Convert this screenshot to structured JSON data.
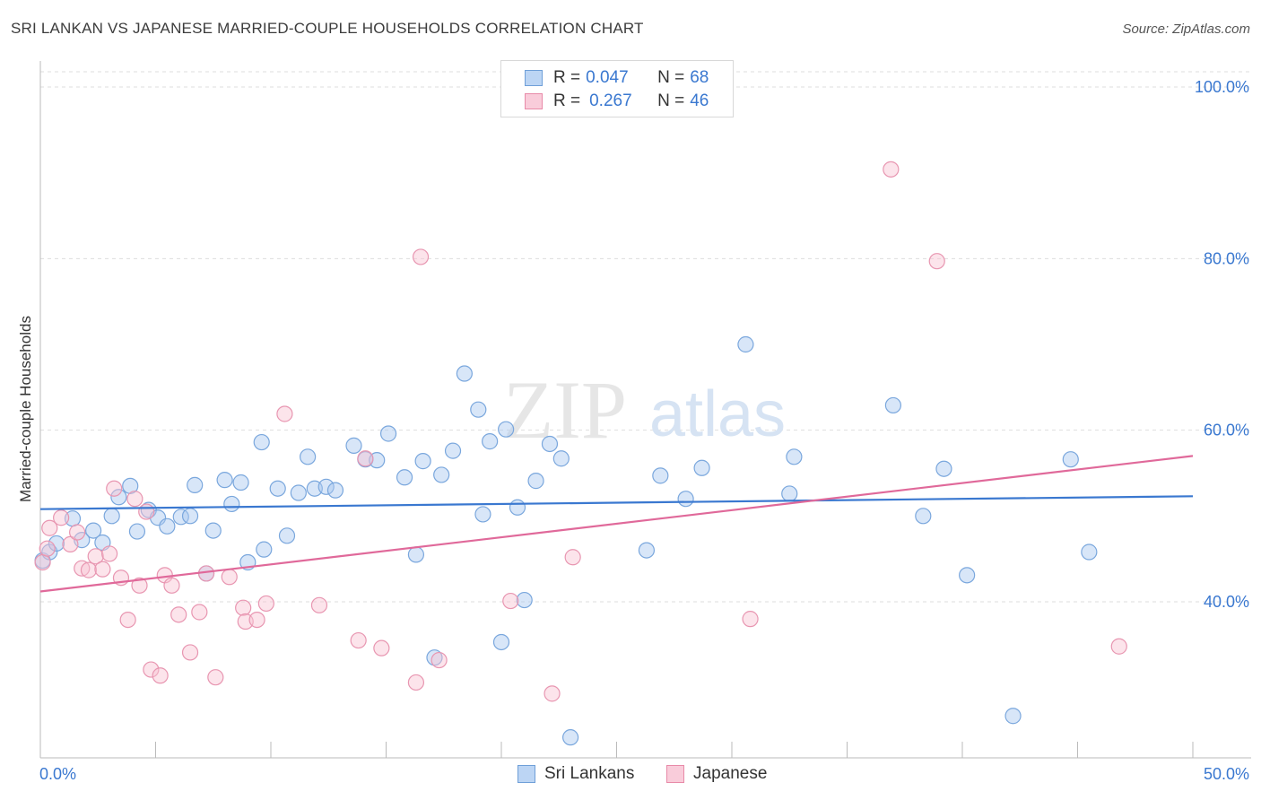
{
  "title": "SRI LANKAN VS JAPANESE MARRIED-COUPLE HOUSEHOLDS CORRELATION CHART",
  "source": "Source: ZipAtlas.com",
  "watermark": {
    "zip": "ZIP",
    "atlas": "atlas"
  },
  "legend": {
    "rows": [
      {
        "r_label": "R =",
        "r_value": "0.047",
        "n_label": "N =",
        "n_value": "68",
        "color": "#a9c8f0",
        "border": "#6f9fd8"
      },
      {
        "r_label": "R =",
        "r_value": "0.267",
        "n_label": "N =",
        "n_value": "46",
        "color": "#f8c3d3",
        "border": "#e88aa8"
      }
    ]
  },
  "bottom_legend": [
    {
      "label": "Sri Lankans",
      "color": "#a9c8f0",
      "border": "#6f9fd8"
    },
    {
      "label": "Japanese",
      "color": "#f8c3d3",
      "border": "#e88aa8"
    }
  ],
  "chart_data": {
    "type": "scatter",
    "title": "SRI LANKAN VS JAPANESE MARRIED-COUPLE HOUSEHOLDS CORRELATION CHART",
    "xlabel": "",
    "ylabel": "Married-couple Households",
    "xlim": [
      0,
      50
    ],
    "ylim": [
      21,
      103
    ],
    "x_tick_labels": [
      "0.0%",
      "50.0%"
    ],
    "y_ticks": [
      40,
      60,
      80,
      100
    ],
    "y_tick_labels": [
      "40.0%",
      "60.0%",
      "80.0%",
      "100.0%"
    ],
    "grid": true,
    "legend_position": "top-center",
    "colors": {
      "sri_lankans": "#3a78d0",
      "japanese": "#e0699a"
    },
    "series": [
      {
        "name": "Sri Lankans",
        "trend": [
          [
            0,
            50.8
          ],
          [
            50,
            52.3
          ]
        ],
        "points": [
          [
            0.1,
            44.8
          ],
          [
            0.4,
            45.8
          ],
          [
            0.7,
            46.8
          ],
          [
            1.4,
            49.7
          ],
          [
            1.8,
            47.2
          ],
          [
            2.3,
            48.3
          ],
          [
            2.7,
            46.9
          ],
          [
            3.1,
            50.0
          ],
          [
            3.4,
            52.2
          ],
          [
            3.9,
            53.5
          ],
          [
            4.2,
            48.2
          ],
          [
            4.7,
            50.7
          ],
          [
            5.1,
            49.8
          ],
          [
            5.5,
            48.8
          ],
          [
            6.1,
            49.9
          ],
          [
            6.5,
            50.0
          ],
          [
            6.7,
            53.6
          ],
          [
            7.2,
            43.3
          ],
          [
            7.5,
            48.3
          ],
          [
            8.0,
            54.2
          ],
          [
            8.3,
            51.4
          ],
          [
            8.7,
            53.9
          ],
          [
            9.0,
            44.6
          ],
          [
            9.6,
            58.6
          ],
          [
            9.7,
            46.1
          ],
          [
            10.3,
            53.2
          ],
          [
            10.7,
            47.7
          ],
          [
            11.2,
            52.7
          ],
          [
            11.6,
            56.9
          ],
          [
            11.9,
            53.2
          ],
          [
            12.4,
            53.4
          ],
          [
            12.8,
            53.0
          ],
          [
            13.6,
            58.2
          ],
          [
            14.1,
            56.6
          ],
          [
            14.6,
            56.5
          ],
          [
            15.1,
            59.6
          ],
          [
            15.8,
            54.5
          ],
          [
            16.3,
            45.5
          ],
          [
            16.6,
            56.4
          ],
          [
            17.1,
            33.5
          ],
          [
            17.4,
            54.8
          ],
          [
            17.9,
            57.6
          ],
          [
            18.4,
            66.6
          ],
          [
            19.0,
            62.4
          ],
          [
            19.2,
            50.2
          ],
          [
            19.5,
            58.7
          ],
          [
            20.0,
            35.3
          ],
          [
            20.2,
            60.1
          ],
          [
            20.7,
            51.0
          ],
          [
            21.0,
            40.2
          ],
          [
            21.5,
            54.1
          ],
          [
            22.1,
            58.4
          ],
          [
            22.6,
            56.7
          ],
          [
            23.0,
            24.2
          ],
          [
            26.3,
            46.0
          ],
          [
            26.9,
            54.7
          ],
          [
            28.0,
            52.0
          ],
          [
            28.7,
            55.6
          ],
          [
            30.6,
            70.0
          ],
          [
            32.5,
            52.6
          ],
          [
            32.7,
            56.9
          ],
          [
            37.0,
            62.9
          ],
          [
            38.3,
            50.0
          ],
          [
            39.2,
            55.5
          ],
          [
            40.2,
            43.1
          ],
          [
            44.7,
            56.6
          ],
          [
            45.5,
            45.8
          ],
          [
            42.2,
            26.7
          ]
        ]
      },
      {
        "name": "Japanese",
        "trend": [
          [
            0,
            41.2
          ],
          [
            50,
            57.0
          ]
        ],
        "points": [
          [
            0.1,
            44.6
          ],
          [
            0.4,
            48.6
          ],
          [
            0.9,
            49.8
          ],
          [
            1.3,
            46.7
          ],
          [
            1.6,
            48.1
          ],
          [
            1.8,
            43.9
          ],
          [
            2.1,
            43.7
          ],
          [
            2.4,
            45.3
          ],
          [
            2.7,
            43.8
          ],
          [
            3.0,
            45.6
          ],
          [
            3.2,
            53.2
          ],
          [
            3.5,
            42.8
          ],
          [
            3.8,
            37.9
          ],
          [
            4.1,
            52.0
          ],
          [
            4.3,
            41.9
          ],
          [
            4.6,
            50.5
          ],
          [
            4.8,
            32.1
          ],
          [
            5.2,
            31.4
          ],
          [
            5.4,
            43.1
          ],
          [
            5.7,
            41.9
          ],
          [
            6.0,
            38.5
          ],
          [
            6.5,
            34.1
          ],
          [
            6.9,
            38.8
          ],
          [
            7.2,
            43.3
          ],
          [
            7.6,
            31.2
          ],
          [
            8.2,
            42.9
          ],
          [
            8.8,
            39.3
          ],
          [
            8.9,
            37.7
          ],
          [
            9.4,
            37.9
          ],
          [
            9.8,
            39.8
          ],
          [
            10.6,
            61.9
          ],
          [
            12.1,
            39.6
          ],
          [
            13.8,
            35.5
          ],
          [
            14.1,
            56.7
          ],
          [
            14.8,
            34.6
          ],
          [
            16.3,
            30.6
          ],
          [
            16.5,
            80.2
          ],
          [
            17.3,
            33.2
          ],
          [
            20.4,
            40.1
          ],
          [
            22.2,
            29.3
          ],
          [
            23.1,
            45.2
          ],
          [
            30.8,
            38.0
          ],
          [
            36.9,
            90.4
          ],
          [
            38.9,
            79.7
          ],
          [
            46.8,
            34.8
          ],
          [
            0.3,
            46.2
          ]
        ]
      }
    ]
  }
}
